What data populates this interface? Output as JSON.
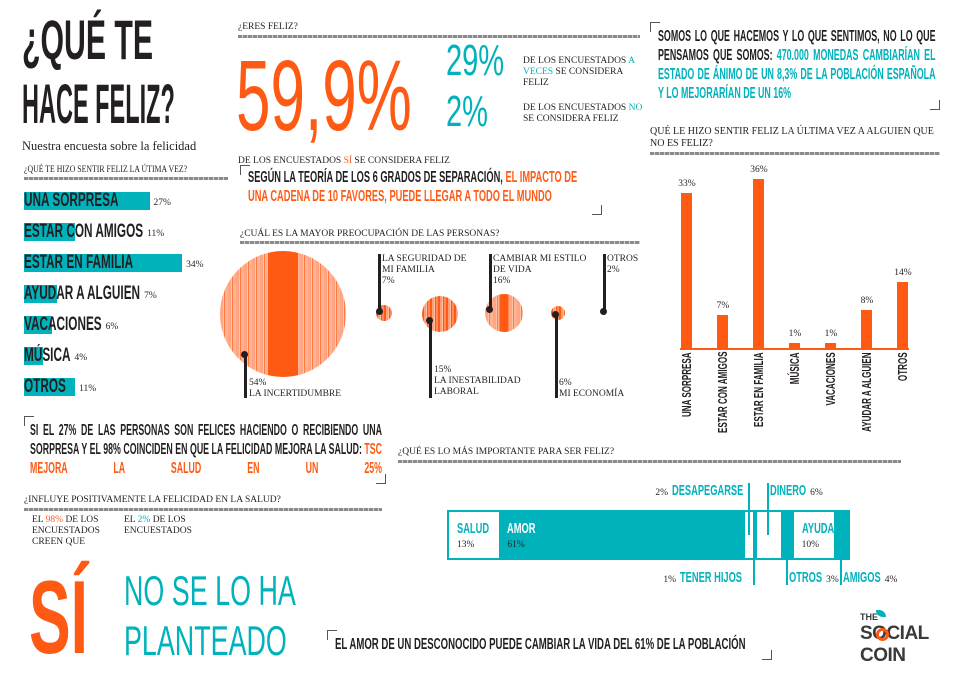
{
  "header": {
    "title_line1": "¿QUÉ TE",
    "title_line2": "HACE FELIZ?",
    "subtitle": "Nuestra encuesta sobre la felicidad"
  },
  "eres_feliz": {
    "question": "¿ERES FELIZ?",
    "main_value": "59,9%",
    "main_caption_pre": "DE LOS ENCUESTADOS ",
    "main_caption_em": "SÍ",
    "main_caption_post": " SE CONSIDERA FELIZ",
    "a_veces_value": "29%",
    "a_veces_pre": "DE LOS ENCUESTADOS ",
    "a_veces_em": "A VECES",
    "a_veces_post": " SE CONSIDERA FELIZ",
    "no_value": "2%",
    "no_pre": "DE LOS ENCUESTADOS ",
    "no_em": "NO",
    "no_post": " SE CONSIDERA FELIZ"
  },
  "quote_top": {
    "dark": "SOMOS LO QUE HACEMOS Y LO QUE SENTIMOS, NO LO QUE PENSAMOS QUE SOMOS: ",
    "teal": "470.000 MONEDAS CAMBIARÍAN EL ESTADO DE ÁNIMO DE UN 8,3% DE LA POBLACIÓN ESPAÑOLA Y LO MEJORARÍAN DE UN 16%"
  },
  "quote_middle": {
    "dark": "SEGÚN LA TEORÍA DE LOS 6 GRADOS DE SEPARACIÓN, ",
    "orange": "EL IMPACTO DE UNA CADENA DE 10 FAVORES, PUEDE LLEGAR A TODO EL MUNDO"
  },
  "quote_left": {
    "dark": "SI EL 27% DE LAS PERSONAS SON FELICES HACIENDO O RECIBIENDO UNA SORPRESA Y EL 98% COINCIDEN EN QUE LA FELICIDAD MEJORA LA SALUD: ",
    "orange": "TSC MEJORA LA SALUD EN UN 25%"
  },
  "quote_bottom": "EL AMOR DE UN DESCONOCIDO PUEDE CAMBIAR LA VIDA DEL 61% DE LA POBLACIÓN",
  "salud": {
    "question": "¿INFLUYE POSITIVAMENTE LA FELICIDAD EN LA SALUD?",
    "yes_pre": "EL ",
    "yes_pct": "98%",
    "yes_post": " DE LOS ENCUESTADOS CREEN QUE",
    "yes_answer": "SÍ",
    "no_pre": "EL ",
    "no_pct": "2%",
    "no_post": " DE LOS ENCUESTADOS",
    "no_answer_1": "NO SE LO HA",
    "no_answer_2": "PLANTEADO"
  },
  "logo": {
    "line1": "THE",
    "line2": "SOCIAL",
    "line3": "COIN"
  },
  "colors": {
    "orange": "#fe5a14",
    "teal": "#00b2bc",
    "dark": "#231f20"
  },
  "chart_data": [
    {
      "type": "bar",
      "orientation": "horizontal",
      "title": "¿QUÉ TE HIZO SENTIR FELIZ LA ÚTIMA VEZ?",
      "categories": [
        "UNA SORPRESA",
        "ESTAR CON AMIGOS",
        "ESTAR EN FAMILIA",
        "AYUDAR A ALGUIEN",
        "VACACIONES",
        "MÚSICA",
        "OTROS"
      ],
      "values": [
        27,
        11,
        34,
        7,
        6,
        4,
        11
      ],
      "labels": [
        "27%",
        "11%",
        "34%",
        "7%",
        "6%",
        "4%",
        "11%"
      ],
      "color": "#00b2bc"
    },
    {
      "type": "bar",
      "orientation": "vertical",
      "title": "QUÉ LE HIZO SENTIR FELIZ LA ÚLTIMA VEZ A ALGUIEN QUE NO ES FELIZ?",
      "categories": [
        "UNA SORPRESA",
        "ESTAR CON AMIGOS",
        "ESTAR EN FAMILIA",
        "MÚSICA",
        "VACACIONES",
        "AYUDAR A ALGUIEN",
        "OTROS"
      ],
      "values": [
        33,
        7,
        36,
        1,
        1,
        8,
        14
      ],
      "labels": [
        "33%",
        "7%",
        "36%",
        "1%",
        "1%",
        "8%",
        "14%"
      ],
      "color": "#fe5a14"
    },
    {
      "type": "bubble",
      "title": "¿CUÁL ES LA MAYOR PREOCUPACIÓN DE LAS PERSONAS?",
      "categories": [
        "LA INCERTIDUMBRE",
        "LA SEGURIDAD DE MI FAMILIA",
        "LA INESTABILIDAD LABORAL",
        "CAMBIAR MI ESTILO DE VIDA",
        "MI ECONOMÍA",
        "OTROS"
      ],
      "values": [
        54,
        7,
        15,
        16,
        6,
        2
      ],
      "labels": [
        "54%",
        "7%",
        "15%",
        "16%",
        "6%",
        "2%"
      ],
      "color": "#fe5a14"
    },
    {
      "type": "stacked-bar",
      "title": "¿QUÉ ES LO MÁS IMPORTANTE PARA SER FELIZ?",
      "categories": [
        "SALUD",
        "AMOR",
        "DESAPEGARSE",
        "TENER HIJOS",
        "DINERO",
        "OTROS",
        "AYUDAR",
        "AMIGOS"
      ],
      "values": [
        13,
        61,
        2,
        1,
        6,
        3,
        10,
        4
      ],
      "labels": [
        "13%",
        "61%",
        "2%",
        "1%",
        "6%",
        "3%",
        "10%",
        "4%"
      ],
      "color": "#00b2bc"
    }
  ]
}
